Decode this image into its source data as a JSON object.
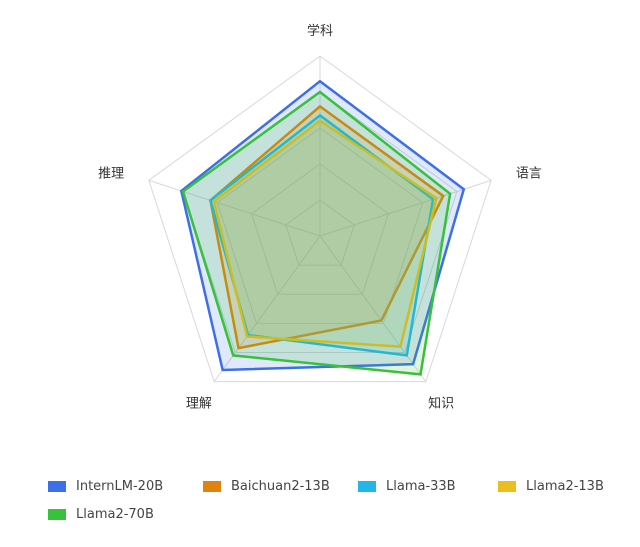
{
  "chart_data": {
    "type": "radar",
    "axes": [
      "学科",
      "语言",
      "知识",
      "理解",
      "推理"
    ],
    "max": 100,
    "levels": 5,
    "grid": true,
    "legend_position": "bottom",
    "series": [
      {
        "name": "InternLM-20B",
        "color": "#3d6fe9",
        "values": [
          86,
          84,
          88,
          92,
          81
        ]
      },
      {
        "name": "Baichuan2-13B",
        "color": "#e0820e",
        "values": [
          72,
          72,
          58,
          77,
          64
        ]
      },
      {
        "name": "Llama-33B",
        "color": "#22b7e6",
        "values": [
          67,
          66,
          82,
          68,
          64
        ]
      },
      {
        "name": "Llama2-13B",
        "color": "#e9be1e",
        "values": [
          64,
          68,
          76,
          69,
          62
        ]
      },
      {
        "name": "Llama2-70B",
        "color": "#38c13a",
        "values": [
          80,
          76,
          95,
          82,
          80
        ]
      }
    ]
  }
}
